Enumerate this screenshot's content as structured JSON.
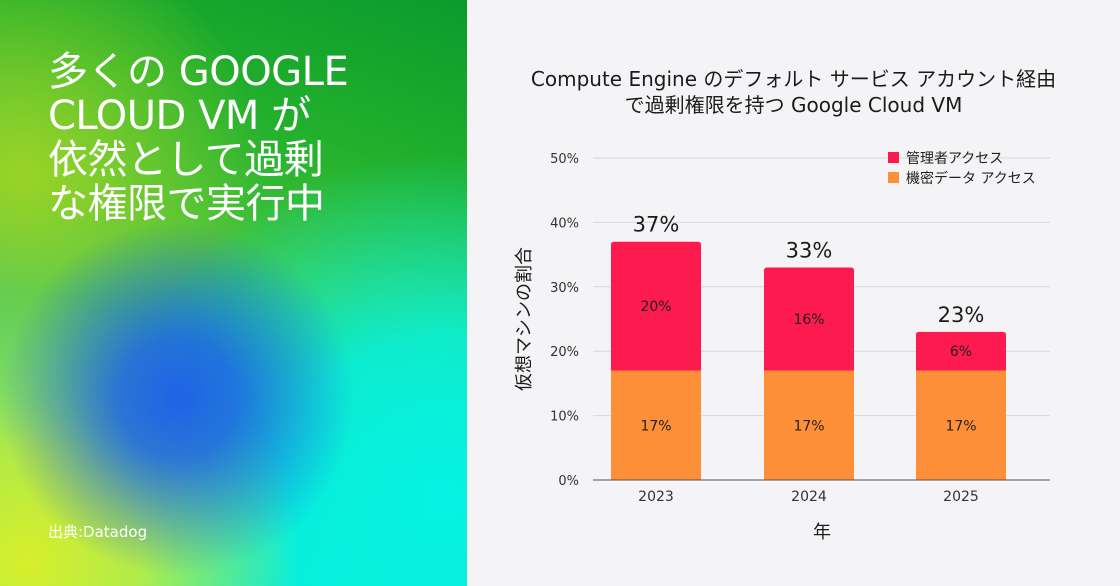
{
  "headline": "多くの GOOGLE\nCLOUD VM が\n依然として過剰\nな権限で実行中",
  "source": "出典:Datadog",
  "colors": {
    "admin": "#fc1a4e",
    "sensitive": "#fd8f38",
    "grid": "#d8d8d8",
    "axis": "#555555"
  },
  "chart_data": {
    "type": "bar",
    "stacked": true,
    "title": "Compute Engine のデフォルト サービス アカウント経由\nで過剰権限を持つ Google Cloud VM",
    "xlabel": "年",
    "ylabel": "仮想マシンの割合",
    "categories": [
      "2023",
      "2024",
      "2025"
    ],
    "series": [
      {
        "name": "機密データ アクセス",
        "values": [
          17,
          17,
          17
        ],
        "labels": [
          "17%",
          "17%",
          "17%"
        ],
        "color": "#fd8f38"
      },
      {
        "name": "管理者アクセス",
        "values": [
          20,
          16,
          6
        ],
        "labels": [
          "20%",
          "16%",
          "6%"
        ],
        "color": "#fc1a4e"
      }
    ],
    "totals": [
      "37%",
      "33%",
      "23%"
    ],
    "ylim": [
      0,
      50
    ],
    "yticks": [
      "0%",
      "10%",
      "20%",
      "30%",
      "40%",
      "50%"
    ],
    "grid": true,
    "legend_position": "top-right",
    "legend": [
      "管理者アクセス",
      "機密データ アクセス"
    ]
  }
}
